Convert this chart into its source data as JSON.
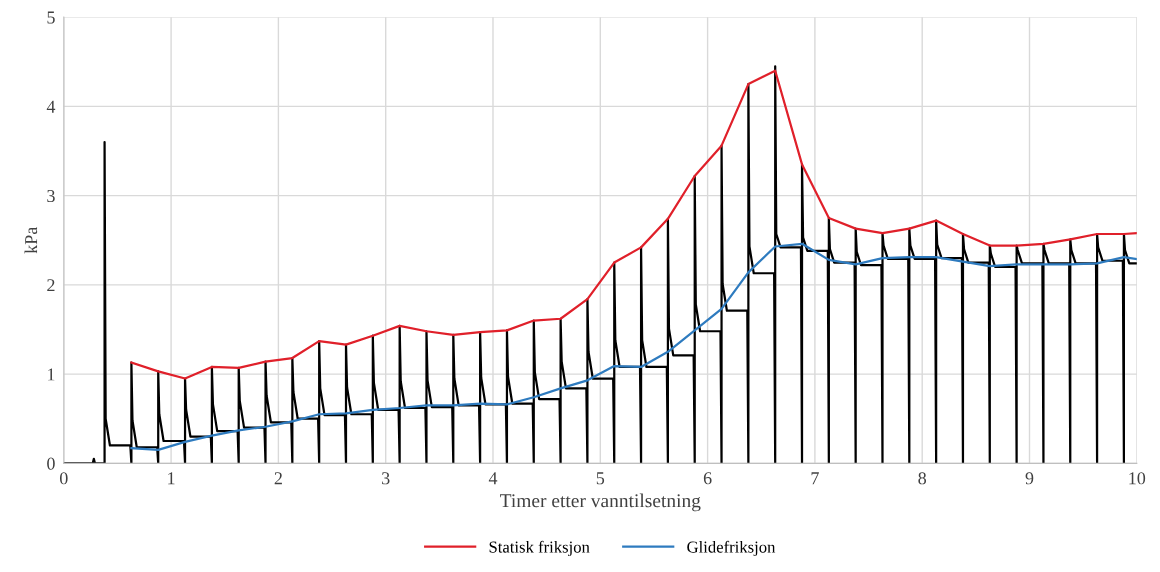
{
  "chart_data": {
    "type": "line",
    "xlabel": "Timer etter vanntilsetning",
    "ylabel": "kPa",
    "xlim": [
      0,
      10
    ],
    "xticks": [
      0,
      1,
      2,
      3,
      4,
      5,
      6,
      7,
      8,
      9,
      10
    ],
    "ylim": [
      0,
      5
    ],
    "yticks": [
      0,
      1,
      2,
      3,
      4,
      5
    ],
    "grid": true,
    "legend": "bottom",
    "marker": "none",
    "line_style": "solid",
    "series": [
      {
        "color": "#000000",
        "x": [
          0,
          0.27,
          0.28,
          0.29,
          0.38,
          0.38,
          0.39,
          0.43,
          0.62,
          0.63,
          0.63,
          0.64,
          0.68,
          0.87,
          0.88,
          0.88,
          0.89,
          0.93,
          1.12,
          1.13,
          1.13,
          1.14,
          1.18,
          1.37,
          1.38,
          1.38,
          1.39,
          1.43,
          1.62,
          1.63,
          1.63,
          1.64,
          1.68,
          1.87,
          1.88,
          1.88,
          1.89,
          1.93,
          2.12,
          2.13,
          2.13,
          2.14,
          2.18,
          2.37,
          2.38,
          2.38,
          2.39,
          2.43,
          2.62,
          2.63,
          2.63,
          2.64,
          2.68,
          2.87,
          2.88,
          2.88,
          2.89,
          2.93,
          3.12,
          3.13,
          3.13,
          3.14,
          3.18,
          3.37,
          3.38,
          3.38,
          3.39,
          3.43,
          3.62,
          3.63,
          3.63,
          3.64,
          3.68,
          3.87,
          3.88,
          3.88,
          3.89,
          3.93,
          4.12,
          4.13,
          4.13,
          4.14,
          4.18,
          4.37,
          4.38,
          4.38,
          4.39,
          4.43,
          4.62,
          4.63,
          4.63,
          4.64,
          4.68,
          4.87,
          4.88,
          4.88,
          4.89,
          4.93,
          5.12,
          5.13,
          5.13,
          5.14,
          5.18,
          5.37,
          5.38,
          5.38,
          5.39,
          5.43,
          5.62,
          5.63,
          5.63,
          5.64,
          5.68,
          5.87,
          5.88,
          5.88,
          5.89,
          5.93,
          6.12,
          6.13,
          6.13,
          6.14,
          6.18,
          6.37,
          6.38,
          6.38,
          6.39,
          6.43,
          6.62,
          6.63,
          6.63,
          6.64,
          6.68,
          6.87,
          6.88,
          6.88,
          6.89,
          6.93,
          7.12,
          7.13,
          7.13,
          7.14,
          7.18,
          7.37,
          7.38,
          7.38,
          7.39,
          7.43,
          7.62,
          7.63,
          7.63,
          7.64,
          7.68,
          7.87,
          7.88,
          7.88,
          7.89,
          7.93,
          8.12,
          8.13,
          8.13,
          8.14,
          8.18,
          8.37,
          8.38,
          8.38,
          8.39,
          8.43,
          8.62,
          8.63,
          8.63,
          8.64,
          8.68,
          8.87,
          8.88,
          8.88,
          8.89,
          8.93,
          9.12,
          9.13,
          9.13,
          9.14,
          9.18,
          9.37,
          9.38,
          9.38,
          9.39,
          9.43,
          9.62,
          9.63,
          9.63,
          9.64,
          9.68,
          9.87,
          9.88,
          9.88,
          9.89,
          9.93,
          10.0
        ],
        "values": [
          0,
          0,
          0.05,
          0,
          0,
          3.6,
          0.5,
          0.2,
          0.2,
          0,
          1.13,
          0.48,
          0.18,
          0.18,
          0,
          1.03,
          0.55,
          0.25,
          0.25,
          0,
          0.95,
          0.6,
          0.3,
          0.3,
          0,
          1.08,
          0.66,
          0.36,
          0.36,
          0,
          1.07,
          0.7,
          0.4,
          0.4,
          0,
          1.14,
          0.76,
          0.46,
          0.46,
          0,
          1.18,
          0.8,
          0.5,
          0.5,
          0,
          1.37,
          0.84,
          0.54,
          0.54,
          0,
          1.33,
          0.85,
          0.55,
          0.55,
          0,
          1.43,
          0.9,
          0.6,
          0.6,
          0,
          1.54,
          0.92,
          0.62,
          0.62,
          0,
          1.48,
          0.93,
          0.63,
          0.63,
          0,
          1.44,
          0.95,
          0.65,
          0.65,
          0,
          1.47,
          0.96,
          0.66,
          0.66,
          0,
          1.49,
          0.97,
          0.67,
          0.67,
          0,
          1.6,
          1.02,
          0.72,
          0.72,
          0,
          1.62,
          1.14,
          0.84,
          0.84,
          0,
          1.84,
          1.25,
          0.95,
          0.95,
          0,
          2.25,
          1.38,
          1.08,
          1.08,
          0,
          2.42,
          1.38,
          1.08,
          1.08,
          0,
          2.74,
          1.51,
          1.21,
          1.21,
          0,
          3.22,
          1.78,
          1.48,
          1.48,
          0,
          3.56,
          2.01,
          1.71,
          1.71,
          0,
          4.25,
          2.43,
          2.13,
          2.13,
          0,
          4.45,
          2.57,
          2.42,
          2.42,
          0,
          3.35,
          2.53,
          2.38,
          2.38,
          0,
          2.75,
          2.4,
          2.25,
          2.25,
          0,
          2.63,
          2.37,
          2.22,
          2.22,
          0,
          2.58,
          2.44,
          2.29,
          2.29,
          0,
          2.63,
          2.44,
          2.29,
          2.29,
          0,
          2.72,
          2.45,
          2.3,
          2.3,
          0,
          2.57,
          2.4,
          2.25,
          2.25,
          0,
          2.44,
          2.35,
          2.2,
          2.2,
          0,
          2.44,
          2.39,
          2.24,
          2.24,
          0,
          2.46,
          2.39,
          2.24,
          2.24,
          0,
          2.51,
          2.39,
          2.24,
          2.24,
          0,
          2.57,
          2.42,
          2.27,
          2.27,
          0,
          2.57,
          2.39,
          2.24,
          2.24
        ]
      },
      {
        "name": "Statisk friksjon",
        "color": "#e0202a",
        "x": [
          0.63,
          0.88,
          1.13,
          1.38,
          1.63,
          1.88,
          2.13,
          2.38,
          2.63,
          2.88,
          3.13,
          3.38,
          3.63,
          3.88,
          4.13,
          4.38,
          4.63,
          4.88,
          5.13,
          5.38,
          5.63,
          5.88,
          6.13,
          6.38,
          6.63,
          6.88,
          7.13,
          7.38,
          7.63,
          7.88,
          8.13,
          8.38,
          8.63,
          8.88,
          9.13,
          9.38,
          9.63,
          9.88,
          10.0
        ],
        "values": [
          1.13,
          1.03,
          0.95,
          1.08,
          1.07,
          1.14,
          1.18,
          1.37,
          1.33,
          1.43,
          1.54,
          1.48,
          1.44,
          1.47,
          1.49,
          1.6,
          1.62,
          1.84,
          2.25,
          2.42,
          2.74,
          3.22,
          3.56,
          4.25,
          4.4,
          3.35,
          2.75,
          2.63,
          2.58,
          2.63,
          2.72,
          2.57,
          2.44,
          2.44,
          2.46,
          2.51,
          2.57,
          2.57,
          2.58
        ]
      },
      {
        "name": "Glidefriksjon",
        "color": "#2e7bbf",
        "x": [
          0.63,
          0.88,
          1.13,
          1.38,
          1.63,
          1.88,
          2.13,
          2.38,
          2.63,
          2.88,
          3.13,
          3.38,
          3.63,
          3.88,
          4.13,
          4.38,
          4.63,
          4.88,
          5.13,
          5.38,
          5.63,
          5.88,
          6.13,
          6.38,
          6.63,
          6.88,
          7.13,
          7.38,
          7.63,
          7.88,
          8.13,
          8.38,
          8.63,
          8.88,
          9.13,
          9.38,
          9.63,
          9.88,
          10.0
        ],
        "values": [
          0.17,
          0.15,
          0.24,
          0.31,
          0.37,
          0.41,
          0.47,
          0.55,
          0.56,
          0.6,
          0.62,
          0.65,
          0.65,
          0.67,
          0.66,
          0.74,
          0.84,
          0.93,
          1.09,
          1.08,
          1.25,
          1.49,
          1.73,
          2.14,
          2.43,
          2.46,
          2.28,
          2.23,
          2.3,
          2.31,
          2.31,
          2.26,
          2.21,
          2.23,
          2.23,
          2.23,
          2.24,
          2.31,
          2.29
        ]
      }
    ]
  }
}
